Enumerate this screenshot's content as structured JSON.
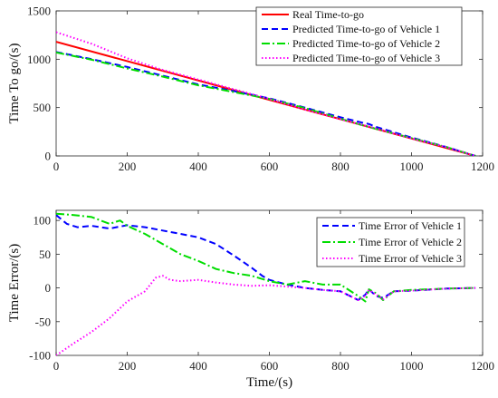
{
  "chart_data": [
    {
      "type": "line",
      "xlabel": "",
      "ylabel": "Time To go/(s)",
      "xlim": [
        0,
        1200
      ],
      "ylim": [
        0,
        1500
      ],
      "xticks": [
        0,
        200,
        400,
        600,
        800,
        1000,
        1200
      ],
      "yticks": [
        0,
        500,
        1000,
        1500
      ],
      "grid": false,
      "legend_position": "top-right",
      "series": [
        {
          "name": "Real Time-to-go",
          "color": "#ff0000",
          "dash": "solid",
          "x": [
            0,
            1180
          ],
          "y": [
            1180,
            0
          ]
        },
        {
          "name": "Predicted Time-to-go of Vehicle 1",
          "color": "#0000ff",
          "dash": "dashed",
          "x": [
            0,
            100,
            200,
            300,
            400,
            500,
            600,
            700,
            800,
            860,
            880,
            900,
            1000,
            1100,
            1180
          ],
          "y": [
            1075,
            1000,
            920,
            830,
            740,
            670,
            595,
            500,
            400,
            345,
            330,
            300,
            190,
            90,
            0
          ]
        },
        {
          "name": "Predicted Time-to-go of Vehicle 2",
          "color": "#00dd00",
          "dash": "dashdot",
          "x": [
            0,
            100,
            200,
            300,
            400,
            500,
            600,
            700,
            800,
            860,
            900,
            1000,
            1100,
            1180
          ],
          "y": [
            1070,
            995,
            905,
            820,
            730,
            660,
            590,
            495,
            385,
            320,
            280,
            185,
            90,
            0
          ]
        },
        {
          "name": "Predicted Time-to-go of Vehicle 3",
          "color": "#ff00ff",
          "dash": "dotted",
          "x": [
            0,
            100,
            200,
            300,
            400,
            500,
            600,
            700,
            800,
            900,
            1000,
            1100,
            1180
          ],
          "y": [
            1280,
            1160,
            1010,
            890,
            790,
            690,
            590,
            480,
            380,
            285,
            180,
            90,
            0
          ]
        }
      ]
    },
    {
      "type": "line",
      "xlabel": "Time/(s)",
      "ylabel": "Time Error/(s)",
      "xlim": [
        0,
        1200
      ],
      "ylim": [
        -100,
        115
      ],
      "xticks": [
        0,
        200,
        400,
        600,
        800,
        1000,
        1200
      ],
      "yticks": [
        -100,
        -50,
        0,
        50,
        100
      ],
      "grid": false,
      "legend_position": "top-right",
      "series": [
        {
          "name": "Time Error of Vehicle 1",
          "color": "#0000ff",
          "dash": "dashed",
          "x": [
            0,
            30,
            60,
            100,
            150,
            200,
            250,
            300,
            350,
            400,
            450,
            500,
            550,
            580,
            600,
            650,
            700,
            750,
            800,
            850,
            870,
            880,
            900,
            920,
            950,
            1000,
            1100,
            1180
          ],
          "y": [
            108,
            95,
            90,
            92,
            88,
            93,
            90,
            85,
            80,
            75,
            65,
            48,
            30,
            18,
            12,
            5,
            0,
            -3,
            -5,
            -18,
            -10,
            -2,
            -12,
            -15,
            -5,
            -4,
            -1,
            0
          ]
        },
        {
          "name": "Time Error of Vehicle 2",
          "color": "#00dd00",
          "dash": "dashdot",
          "x": [
            0,
            50,
            100,
            150,
            180,
            200,
            250,
            300,
            350,
            400,
            450,
            500,
            550,
            600,
            650,
            700,
            750,
            800,
            850,
            870,
            880,
            900,
            920,
            950,
            1000,
            1100,
            1180
          ],
          "y": [
            110,
            108,
            105,
            95,
            100,
            92,
            80,
            65,
            50,
            40,
            28,
            22,
            18,
            10,
            5,
            10,
            5,
            5,
            -12,
            -20,
            -2,
            -8,
            -18,
            -5,
            -3,
            -1,
            0
          ]
        },
        {
          "name": "Time Error of Vehicle 3",
          "color": "#ff00ff",
          "dash": "dotted",
          "x": [
            0,
            50,
            100,
            150,
            200,
            250,
            280,
            300,
            320,
            350,
            400,
            450,
            500,
            550,
            600,
            650,
            700,
            750,
            800,
            850,
            870,
            880,
            900,
            920,
            950,
            1000,
            1100,
            1180
          ],
          "y": [
            -100,
            -82,
            -65,
            -45,
            -20,
            -5,
            15,
            18,
            12,
            10,
            12,
            8,
            5,
            3,
            4,
            2,
            0,
            -3,
            -5,
            -18,
            -12,
            -3,
            -10,
            -17,
            -5,
            -4,
            -1,
            0
          ]
        }
      ]
    }
  ]
}
